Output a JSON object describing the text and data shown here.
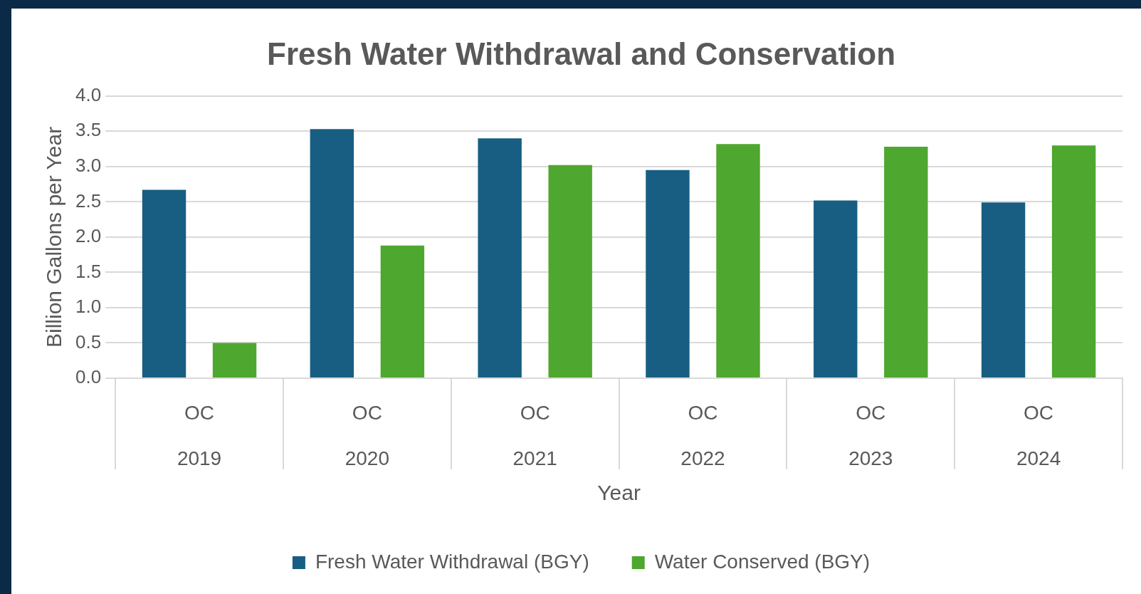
{
  "chart_data": {
    "type": "bar",
    "title": "Fresh Water Withdrawal and Conservation",
    "xlabel": "Year",
    "ylabel": "Billion Gallons per Year",
    "categories": [
      "OC 2019",
      "OC 2020",
      "OC 2021",
      "OC 2022",
      "OC 2023",
      "OC 2024"
    ],
    "series": [
      {
        "name": "Fresh Water Withdrawal (BGY)",
        "color": "#175e82",
        "values": [
          2.67,
          3.53,
          3.4,
          2.95,
          2.52,
          2.49
        ]
      },
      {
        "name": "Water Conserved (BGY)",
        "color": "#4ea72e",
        "values": [
          0.5,
          1.88,
          3.02,
          3.32,
          3.28,
          3.3
        ]
      }
    ],
    "ylim": [
      0,
      4
    ],
    "yticks": [
      {
        "value": 0,
        "label": "0.0"
      },
      {
        "value": 0.5,
        "label": "0.5"
      },
      {
        "value": 1,
        "label": "1.0"
      },
      {
        "value": 1.5,
        "label": "1.5"
      },
      {
        "value": 2,
        "label": "2.0"
      },
      {
        "value": 2.5,
        "label": "2.5"
      },
      {
        "value": 3,
        "label": "3.0"
      },
      {
        "value": 3.5,
        "label": "3.5"
      },
      {
        "value": 4,
        "label": "4.0"
      }
    ],
    "grid": "y",
    "legend": "bottom"
  }
}
